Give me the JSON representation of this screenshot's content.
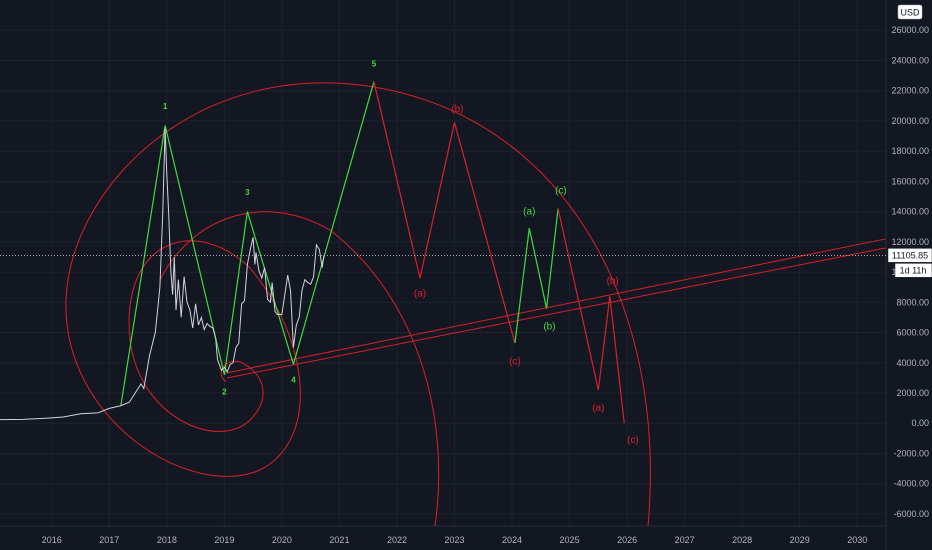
{
  "currency": "USD",
  "price_label": "11105.85",
  "countdown_label": "1d 11h",
  "colors": {
    "background": "#131722",
    "price": "#d1d4dc",
    "impulse": "#3ddc3d",
    "corrective": "#d8202a",
    "axis_text": "#b2b5be"
  },
  "chart_data": {
    "type": "line",
    "xlim": [
      2015.1,
      2030.5
    ],
    "ylim": [
      -6800,
      28000
    ],
    "x_ticks": [
      "2016",
      "2017",
      "2018",
      "2019",
      "2020",
      "2021",
      "2022",
      "2023",
      "2024",
      "2025",
      "2026",
      "2027",
      "2028",
      "2029",
      "2030"
    ],
    "y_ticks": [
      "-6000.00",
      "-4000.00",
      "-2000.00",
      "0.00",
      "2000.00",
      "4000.00",
      "6000.00",
      "8000.00",
      "10000.00",
      "12000.00",
      "14000.00",
      "16000.00",
      "18000.00",
      "20000.00",
      "22000.00",
      "24000.00",
      "26000.00"
    ],
    "last_price": 11105.85,
    "series": [
      {
        "role": "price",
        "points": [
          [
            2015.1,
            240
          ],
          [
            2015.5,
            250
          ],
          [
            2015.9,
            330
          ],
          [
            2016.2,
            410
          ],
          [
            2016.5,
            620
          ],
          [
            2016.8,
            680
          ],
          [
            2017.0,
            980
          ],
          [
            2017.2,
            1150
          ],
          [
            2017.35,
            1400
          ],
          [
            2017.45,
            2000
          ],
          [
            2017.55,
            2600
          ],
          [
            2017.6,
            2300
          ],
          [
            2017.7,
            4500
          ],
          [
            2017.8,
            6000
          ],
          [
            2017.88,
            9000
          ],
          [
            2017.93,
            14000
          ],
          [
            2017.97,
            19500
          ],
          [
            2018.0,
            16500
          ],
          [
            2018.03,
            14000
          ],
          [
            2018.07,
            10000
          ],
          [
            2018.1,
            8500
          ],
          [
            2018.13,
            11000
          ],
          [
            2018.16,
            7500
          ],
          [
            2018.2,
            9500
          ],
          [
            2018.25,
            7000
          ],
          [
            2018.3,
            9700
          ],
          [
            2018.35,
            8000
          ],
          [
            2018.4,
            7500
          ],
          [
            2018.45,
            6300
          ],
          [
            2018.5,
            7900
          ],
          [
            2018.55,
            6500
          ],
          [
            2018.6,
            7000
          ],
          [
            2018.65,
            6200
          ],
          [
            2018.7,
            6600
          ],
          [
            2018.75,
            6400
          ],
          [
            2018.8,
            6300
          ],
          [
            2018.85,
            5600
          ],
          [
            2018.88,
            4200
          ],
          [
            2018.95,
            3500
          ],
          [
            2019.0,
            3700
          ],
          [
            2019.05,
            3400
          ],
          [
            2019.1,
            3900
          ],
          [
            2019.15,
            4000
          ],
          [
            2019.2,
            5000
          ],
          [
            2019.25,
            5300
          ],
          [
            2019.3,
            7900
          ],
          [
            2019.35,
            8100
          ],
          [
            2019.4,
            10500
          ],
          [
            2019.45,
            11500
          ],
          [
            2019.5,
            12300
          ],
          [
            2019.53,
            10500
          ],
          [
            2019.55,
            11300
          ],
          [
            2019.6,
            10100
          ],
          [
            2019.65,
            9600
          ],
          [
            2019.7,
            10300
          ],
          [
            2019.75,
            8200
          ],
          [
            2019.8,
            8000
          ],
          [
            2019.83,
            9300
          ],
          [
            2019.88,
            7400
          ],
          [
            2019.92,
            7200
          ],
          [
            2019.97,
            7200
          ],
          [
            2020.0,
            7200
          ],
          [
            2020.05,
            8500
          ],
          [
            2020.1,
            9800
          ],
          [
            2020.15,
            8800
          ],
          [
            2020.2,
            5000
          ],
          [
            2020.25,
            6500
          ],
          [
            2020.3,
            7000
          ],
          [
            2020.35,
            8800
          ],
          [
            2020.4,
            9500
          ],
          [
            2020.45,
            9300
          ],
          [
            2020.5,
            9200
          ],
          [
            2020.55,
            9700
          ],
          [
            2020.6,
            11800
          ],
          [
            2020.65,
            11500
          ],
          [
            2020.7,
            10300
          ],
          [
            2020.73,
            11105
          ]
        ]
      },
      {
        "role": "impulse",
        "points": [
          [
            2017.2,
            1150
          ],
          [
            2017.97,
            19700
          ],
          [
            2019.0,
            3200
          ],
          [
            2019.4,
            14000
          ],
          [
            2020.2,
            3900
          ],
          [
            2021.6,
            22600
          ],
          [
            2022.4,
            9600
          ],
          [
            2023.0,
            19900
          ],
          [
            2024.05,
            5300
          ],
          [
            2024.3,
            12900
          ],
          [
            2024.6,
            7600
          ],
          [
            2024.8,
            14200
          ],
          [
            2025.5,
            2200
          ],
          [
            2025.7,
            8400
          ],
          [
            2025.95,
            0
          ]
        ]
      }
    ],
    "wave_labels": [
      {
        "text": "1",
        "x": 2017.97,
        "y": 20800,
        "group": "impulse"
      },
      {
        "text": "2",
        "x": 2019.0,
        "y": 1900,
        "group": "impulse"
      },
      {
        "text": "3",
        "x": 2019.4,
        "y": 15100,
        "group": "impulse"
      },
      {
        "text": "4",
        "x": 2020.2,
        "y": 2700,
        "group": "impulse"
      },
      {
        "text": "5",
        "x": 2021.6,
        "y": 23600,
        "group": "impulse"
      },
      {
        "text": "(a)",
        "x": 2022.4,
        "y": 8400,
        "group": "corrective"
      },
      {
        "text": "(b)",
        "x": 2023.05,
        "y": 20600,
        "group": "corrective"
      },
      {
        "text": "(c)",
        "x": 2024.05,
        "y": 3900,
        "group": "corrective"
      },
      {
        "text": "(a)",
        "x": 2024.3,
        "y": 13800,
        "group": "impulse"
      },
      {
        "text": "(b)",
        "x": 2024.65,
        "y": 6200,
        "group": "impulse"
      },
      {
        "text": "(c)",
        "x": 2024.85,
        "y": 15200,
        "group": "impulse"
      },
      {
        "text": "(b)",
        "x": 2025.75,
        "y": 9200,
        "group": "corrective"
      },
      {
        "text": "(a)",
        "x": 2025.5,
        "y": 800,
        "group": "corrective"
      },
      {
        "text": "(c)",
        "x": 2026.1,
        "y": -1300,
        "group": "corrective"
      }
    ],
    "trendlines": [
      {
        "x1": 2019.0,
        "y1": 3300,
        "x2": 2030.5,
        "y2": 12200
      },
      {
        "x1": 2019.05,
        "y1": 3000,
        "x2": 2030.5,
        "y2": 11600
      }
    ]
  }
}
